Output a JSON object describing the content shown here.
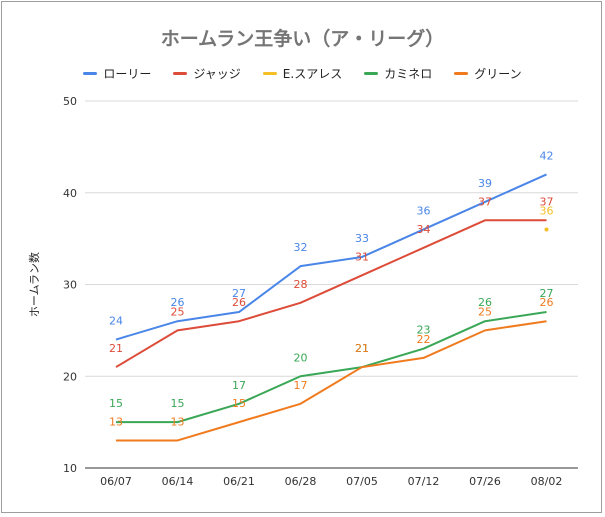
{
  "chart_data": {
    "type": "line",
    "title": "ホームラン王争い（ア・リーグ）",
    "xlabel": "",
    "ylabel": "ホームラン数",
    "x": [
      "06/07",
      "06/14",
      "06/21",
      "06/28",
      "07/05",
      "07/12",
      "07/26",
      "08/02"
    ],
    "ylim": [
      10,
      50
    ],
    "yticks": [
      10,
      20,
      30,
      40,
      50
    ],
    "grid": true,
    "legend_position": "top",
    "series": [
      {
        "name": "ローリー",
        "color": "#4a86e8",
        "values": [
          24,
          26,
          27,
          32,
          33,
          36,
          39,
          42
        ]
      },
      {
        "name": "ジャッジ",
        "color": "#dd4b39",
        "values": [
          21,
          25,
          26,
          28,
          31,
          34,
          37,
          37
        ]
      },
      {
        "name": "E.スアレス",
        "color": "#f6bf26",
        "values": [
          null,
          null,
          null,
          null,
          null,
          null,
          null,
          36
        ]
      },
      {
        "name": "カミネロ",
        "color": "#3aa757",
        "values": [
          15,
          15,
          17,
          20,
          21,
          23,
          26,
          27
        ]
      },
      {
        "name": "グリーン",
        "color": "#f07b1f",
        "values": [
          13,
          13,
          15,
          17,
          21,
          22,
          25,
          26
        ]
      }
    ]
  }
}
